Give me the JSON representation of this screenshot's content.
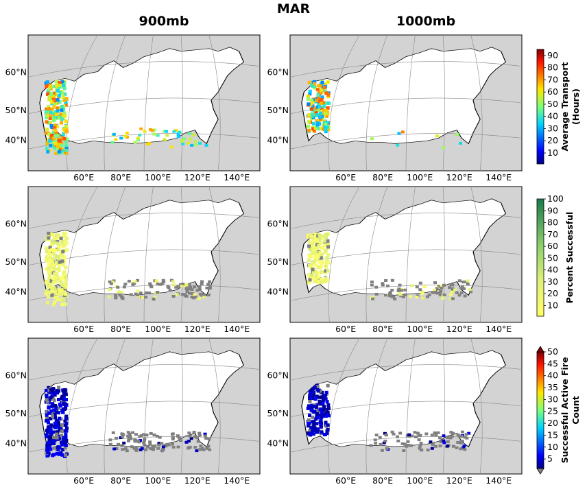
{
  "figure": {
    "title": "MAR",
    "columns": [
      "900mb",
      "1000mb"
    ]
  },
  "map": {
    "lat_labels": [
      "60°N",
      "50°N",
      "40°N"
    ],
    "lon_labels": [
      "60°E",
      "80°E",
      "100°E",
      "120°E",
      "140°E"
    ],
    "ocean_color": "#d3d3d3",
    "land_color": "#ffffff",
    "no_success_color": "#808080"
  },
  "colorbars": [
    {
      "label_line1": "Average Transport",
      "label_line2": "(Hours)",
      "ticks": [
        "10",
        "20",
        "30",
        "40",
        "50",
        "60",
        "70",
        "80",
        "90"
      ],
      "colormap": "jet",
      "min": 1,
      "max": 95,
      "extend": "none"
    },
    {
      "label_line1": "Percent Successful",
      "label_line2": "",
      "ticks": [
        "10",
        "20",
        "30",
        "40",
        "50",
        "60",
        "70",
        "80",
        "90",
        "100"
      ],
      "colormap": "yellow-green",
      "min": 1,
      "max": 100,
      "extend": "none"
    },
    {
      "label_line1": "Successful Active Fire",
      "label_line2": "Count",
      "ticks": [
        "5",
        "10",
        "15",
        "20",
        "25",
        "30",
        "35",
        "40",
        "45",
        "50"
      ],
      "colormap": "jet",
      "min": 1,
      "max": 50,
      "extend": "both"
    }
  ]
}
